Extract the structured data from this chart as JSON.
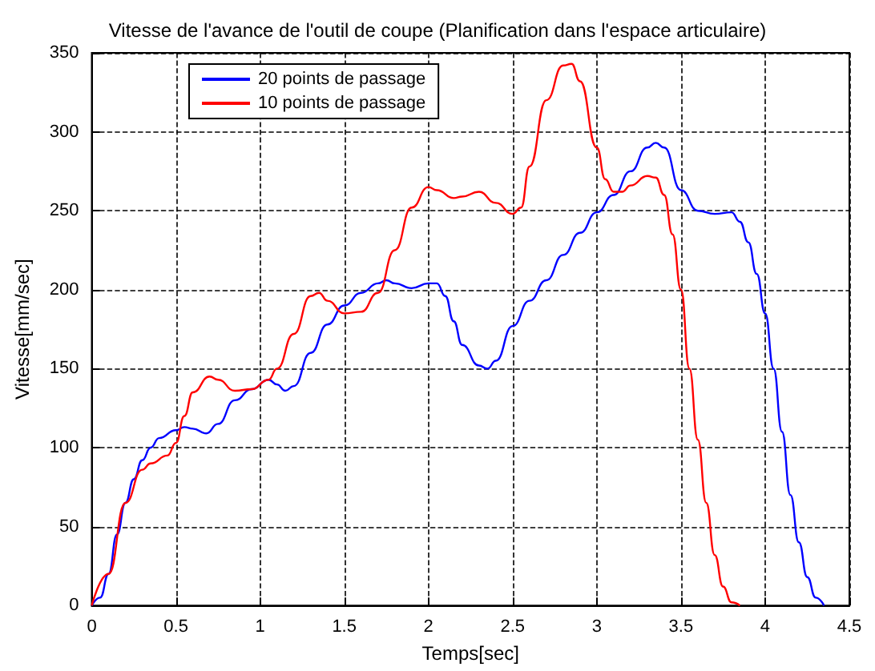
{
  "chart_data": {
    "type": "line",
    "title": "Vitesse de l'avance de l'outil de coupe (Planification dans l'espace articulaire)",
    "xlabel": "Temps[sec]",
    "ylabel": "Vitesse[mm/sec]",
    "xlim": [
      0,
      4.5
    ],
    "xticks": [
      0,
      0.5,
      1,
      1.5,
      2,
      2.5,
      3,
      3.5,
      4,
      4.5
    ],
    "ylim": [
      0,
      350
    ],
    "yticks": [
      0,
      50,
      100,
      150,
      200,
      250,
      300,
      350
    ],
    "grid": true,
    "legend": "top left",
    "marker": "none",
    "line_style": "solid",
    "series": [
      {
        "name": "20 points de passage",
        "color": "#0000ff",
        "x": [
          0,
          0.05,
          0.1,
          0.15,
          0.2,
          0.25,
          0.3,
          0.35,
          0.4,
          0.5,
          0.55,
          0.6,
          0.68,
          0.75,
          0.85,
          0.95,
          1.05,
          1.1,
          1.15,
          1.2,
          1.3,
          1.4,
          1.5,
          1.6,
          1.7,
          1.75,
          1.8,
          1.9,
          2.0,
          2.05,
          2.1,
          2.15,
          2.2,
          2.3,
          2.35,
          2.4,
          2.5,
          2.6,
          2.7,
          2.8,
          2.9,
          3.0,
          3.1,
          3.2,
          3.3,
          3.35,
          3.4,
          3.5,
          3.6,
          3.7,
          3.8,
          3.85,
          3.9,
          3.95,
          4.0,
          4.05,
          4.1,
          4.15,
          4.2,
          4.25,
          4.3,
          4.35
        ],
        "values": [
          0,
          5,
          20,
          45,
          65,
          80,
          92,
          100,
          106,
          111,
          113,
          112,
          109,
          115,
          130,
          137,
          143,
          140,
          136,
          139,
          160,
          178,
          190,
          198,
          204,
          206,
          204,
          201,
          204,
          204,
          196,
          180,
          165,
          152,
          150,
          155,
          177,
          193,
          206,
          222,
          236,
          249,
          260,
          275,
          290,
          293,
          290,
          263,
          250,
          248,
          249,
          243,
          230,
          210,
          185,
          150,
          110,
          70,
          40,
          18,
          5,
          0
        ]
      },
      {
        "name": "10 points de passage",
        "color": "#ff0000",
        "x": [
          0,
          0.1,
          0.2,
          0.3,
          0.35,
          0.45,
          0.5,
          0.55,
          0.6,
          0.7,
          0.75,
          0.85,
          0.95,
          1.05,
          1.1,
          1.2,
          1.3,
          1.35,
          1.4,
          1.5,
          1.6,
          1.7,
          1.8,
          1.9,
          2.0,
          2.05,
          2.15,
          2.2,
          2.3,
          2.4,
          2.5,
          2.55,
          2.6,
          2.7,
          2.8,
          2.85,
          2.9,
          3.0,
          3.05,
          3.1,
          3.15,
          3.2,
          3.3,
          3.35,
          3.4,
          3.45,
          3.5,
          3.55,
          3.6,
          3.65,
          3.7,
          3.75,
          3.8,
          3.85
        ],
        "values": [
          0,
          20,
          65,
          86,
          90,
          95,
          103,
          120,
          135,
          145,
          143,
          136,
          137,
          143,
          150,
          172,
          196,
          198,
          193,
          185,
          186,
          198,
          225,
          252,
          265,
          263,
          258,
          259,
          262,
          255,
          248,
          252,
          278,
          320,
          342,
          343,
          332,
          290,
          270,
          262,
          262,
          266,
          272,
          271,
          260,
          235,
          200,
          150,
          105,
          65,
          32,
          12,
          2,
          0
        ]
      }
    ]
  }
}
